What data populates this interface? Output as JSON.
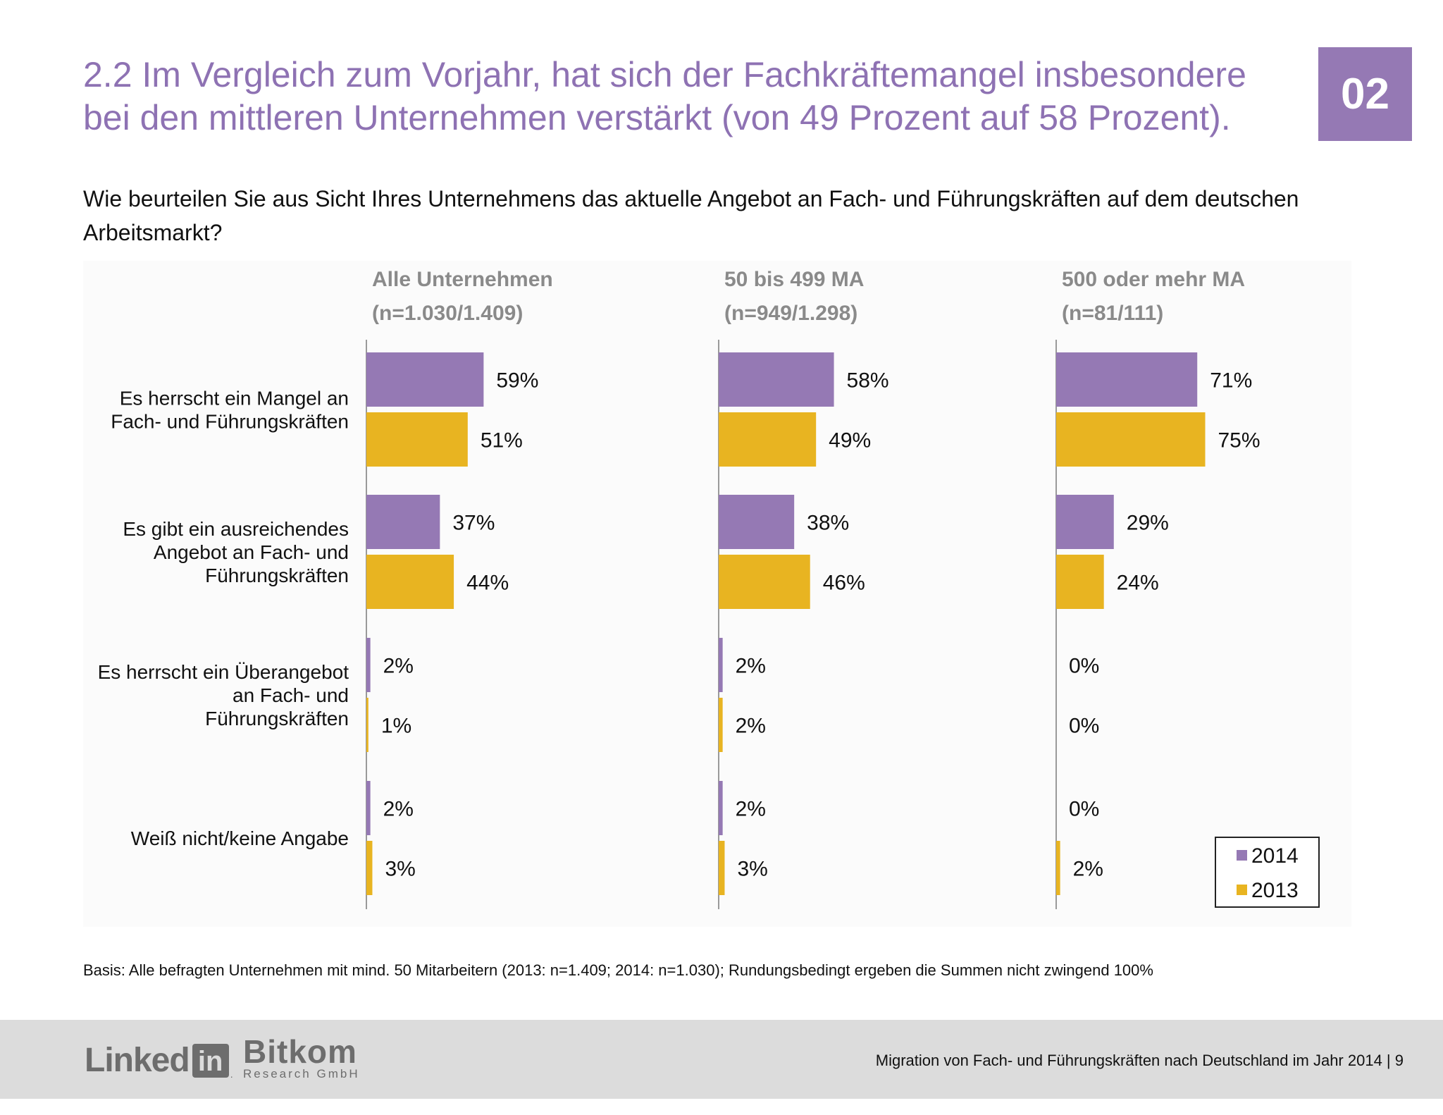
{
  "page": {
    "title": "2.2 Im Vergleich zum Vorjahr, hat sich der Fachkräftemangel insbesondere bei den mittleren Unternehmen verstärkt (von 49 Prozent auf 58 Prozent).",
    "section_number": "02",
    "question": "Wie beurteilen Sie aus Sicht Ihres Unternehmens das aktuelle Angebot an Fach- und Führungskräften auf dem deutschen Arbeitsmarkt?",
    "footnote": "Basis: Alle befragten Unternehmen mit mind. 50 Mitarbeitern (2013: n=1.409; 2014: n=1.030); Rundungsbedingt ergeben die Summen nicht zwingend 100%",
    "footer": {
      "text": "Migration von Fach- und Führungskräften nach Deutschland im Jahr 2014  |  9",
      "linkedin_word": "Linked",
      "linkedin_box": "in",
      "bitkom_name": "Bitkom",
      "bitkom_sub": "Research GmbH"
    }
  },
  "colors": {
    "title": "#8e72b3",
    "badge": "#9579b4",
    "series_2014": "#9579b4",
    "series_2013": "#e8b421"
  },
  "chart_data": {
    "type": "bar",
    "orientation": "horizontal",
    "grid": false,
    "legend_position": "bottom-right",
    "value_unit": "%",
    "categories": [
      [
        "Es herrscht ein Mangel an",
        "Fach- und Führungskräften"
      ],
      [
        "Es gibt ein ausreichendes",
        "Angebot an Fach- und",
        "Führungskräften"
      ],
      [
        "Es herrscht ein Überangebot",
        "an Fach- und",
        "Führungskräften"
      ],
      [
        "Weiß nicht/keine Angabe"
      ]
    ],
    "series": [
      {
        "name": "2014",
        "color": "#9579b4"
      },
      {
        "name": "2013",
        "color": "#e8b421"
      }
    ],
    "panels": [
      {
        "title": "Alle Unternehmen",
        "subtitle": "(n=1.030/1.409)",
        "values": {
          "2014": [
            59,
            37,
            2,
            2
          ],
          "2013": [
            51,
            44,
            1,
            3
          ]
        }
      },
      {
        "title": "50 bis 499 MA",
        "subtitle": "(n=949/1.298)",
        "values": {
          "2014": [
            58,
            38,
            2,
            2
          ],
          "2013": [
            49,
            46,
            2,
            3
          ]
        }
      },
      {
        "title": "500 oder mehr MA",
        "subtitle": "(n=81/111)",
        "values": {
          "2014": [
            71,
            29,
            0,
            0
          ],
          "2013": [
            75,
            24,
            0,
            2
          ]
        }
      }
    ]
  }
}
